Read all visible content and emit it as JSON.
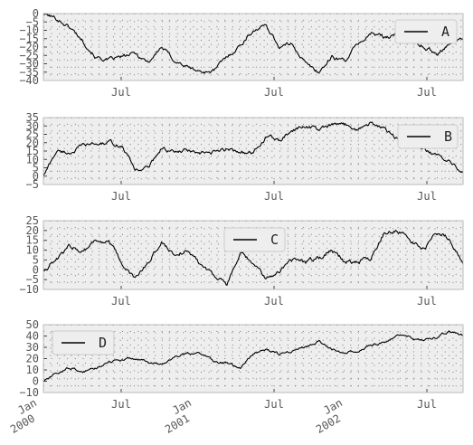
{
  "chart_data": [
    {
      "type": "line",
      "series": [
        {
          "name": "A",
          "values": [
            0,
            -3,
            -8,
            -16,
            -26,
            -28,
            -26,
            -24,
            -29,
            -20,
            -28,
            -32,
            -35,
            -34,
            -26,
            -19,
            -10,
            -7,
            -20,
            -18,
            -30,
            -35,
            -26,
            -28,
            -18,
            -12,
            -14,
            -12,
            -16,
            -20,
            -24,
            -17,
            -15
          ]
        }
      ],
      "ylim": [
        -40,
        0
      ],
      "yticks": [
        0,
        -5,
        -10,
        -15,
        -20,
        -25,
        -30,
        -35,
        -40
      ],
      "legend_position": "upper right"
    },
    {
      "type": "line",
      "series": [
        {
          "name": "B",
          "values": [
            0,
            15,
            14,
            18,
            19,
            20,
            18,
            4,
            5,
            17,
            14,
            15,
            13,
            14,
            16,
            15,
            13,
            24,
            21,
            27,
            30,
            28,
            30,
            31,
            28,
            32,
            28,
            22,
            19,
            16,
            12,
            10,
            2
          ]
        }
      ],
      "ylim": [
        -5,
        35
      ],
      "yticks": [
        35,
        30,
        25,
        20,
        15,
        10,
        5,
        0,
        -5
      ],
      "legend_position": "upper right"
    },
    {
      "type": "line",
      "series": [
        {
          "name": "C",
          "values": [
            0,
            5,
            12,
            10,
            15,
            14,
            3,
            -5,
            4,
            14,
            8,
            10,
            3,
            -2,
            -8,
            8,
            3,
            -5,
            0,
            5,
            4,
            6,
            11,
            4,
            4,
            6,
            19,
            20,
            15,
            10,
            18,
            16,
            3
          ]
        }
      ],
      "ylim": [
        -10,
        25
      ],
      "yticks": [
        25,
        20,
        15,
        10,
        5,
        0,
        -5,
        -10
      ],
      "legend_position": "upper center"
    },
    {
      "type": "line",
      "series": [
        {
          "name": "D",
          "values": [
            0,
            6,
            12,
            8,
            12,
            18,
            19,
            20,
            17,
            14,
            22,
            24,
            25,
            18,
            16,
            11,
            25,
            28,
            24,
            28,
            30,
            35,
            28,
            26,
            28,
            32,
            34,
            40,
            38,
            36,
            38,
            44,
            40
          ]
        }
      ],
      "ylim": [
        -10,
        50
      ],
      "yticks": [
        50,
        40,
        30,
        20,
        10,
        0,
        -10
      ],
      "legend_position": "upper left"
    }
  ],
  "x_axis": {
    "month_labels": [
      "Jul",
      "Jul",
      "Jul"
    ],
    "year_labels": [
      {
        "line1": "Jan",
        "line2": "2000"
      },
      {
        "line1": "Jan",
        "line2": "2001"
      },
      {
        "line1": "Jan",
        "line2": "2002"
      }
    ]
  },
  "colors": {
    "line": "#000000",
    "plot_bg": "#eeeeee",
    "grid": "#7a7a7a",
    "tick_text": "#555555"
  }
}
